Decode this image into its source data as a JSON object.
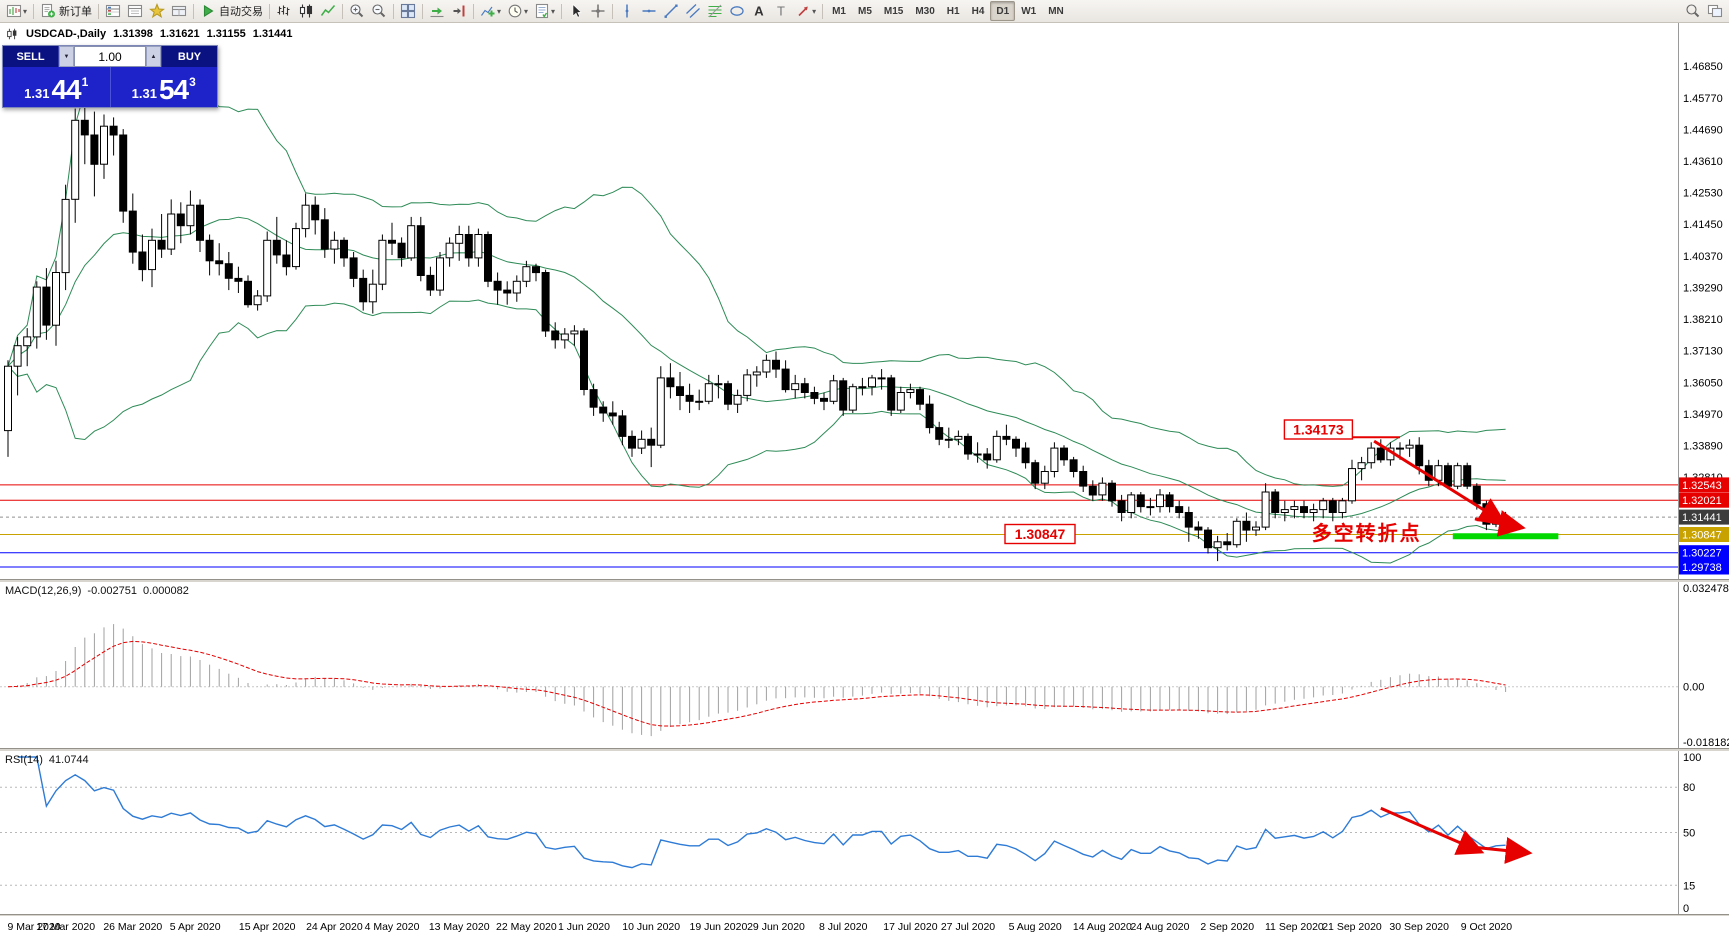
{
  "toolbar": {
    "groups": [
      [
        {
          "icon": "chart-window",
          "dropdown": true
        }
      ],
      [
        {
          "icon": "new-order",
          "label": "新订单"
        }
      ],
      [
        {
          "icon": "market-watch"
        },
        {
          "icon": "data-window"
        },
        {
          "icon": "navigator"
        },
        {
          "icon": "terminal-box"
        }
      ],
      [
        {
          "icon": "auto-trading",
          "label": "自动交易"
        }
      ],
      [
        {
          "icon": "bar-chart"
        },
        {
          "icon": "candle-chart"
        },
        {
          "icon": "line-chart"
        }
      ],
      [
        {
          "icon": "zoom-in"
        },
        {
          "icon": "zoom-out"
        }
      ],
      [
        {
          "icon": "tile-windows"
        }
      ],
      [
        {
          "icon": "auto-scroll"
        },
        {
          "icon": "chart-shift"
        }
      ],
      [
        {
          "icon": "indicators",
          "dropdown": true
        },
        {
          "icon": "periods",
          "dropdown": true
        },
        {
          "icon": "templates",
          "dropdown": true
        }
      ],
      [
        {
          "icon": "cursor"
        },
        {
          "icon": "crosshair"
        }
      ],
      [
        {
          "icon": "vertical-line"
        },
        {
          "icon": "horizontal-line"
        },
        {
          "icon": "trendline"
        },
        {
          "icon": "equidistant-channel"
        },
        {
          "icon": "fibonacci"
        },
        {
          "icon": "shapes"
        },
        {
          "icon": "text"
        },
        {
          "icon": "label"
        },
        {
          "icon": "arrows",
          "dropdown": true
        }
      ],
      [
        {
          "text": "M1"
        },
        {
          "text": "M5"
        },
        {
          "text": "M15"
        },
        {
          "text": "M30"
        },
        {
          "text": "H1"
        },
        {
          "text": "H4"
        },
        {
          "text": "D1",
          "active": true
        },
        {
          "text": "W1"
        },
        {
          "text": "MN"
        }
      ]
    ],
    "right_icons": [
      {
        "icon": "search"
      },
      {
        "icon": "layouts"
      }
    ]
  },
  "chart_header": {
    "symbol": "USDCAD-,Daily",
    "open": "1.31398",
    "high": "1.31621",
    "low": "1.31155",
    "close": "1.31441"
  },
  "trade_panel": {
    "sell_label": "SELL",
    "buy_label": "BUY",
    "volume": "1.00",
    "sell_price": {
      "prefix": "1.31",
      "big": "44",
      "sup": "1"
    },
    "buy_price": {
      "prefix": "1.31",
      "big": "54",
      "sup": "3"
    }
  },
  "main_chart": {
    "ylim": [
      1.2943,
      1.4836
    ],
    "axis_labels": [
      1.4685,
      1.4577,
      1.4469,
      1.4361,
      1.4253,
      1.4145,
      1.4037,
      1.3929,
      1.3821,
      1.3713,
      1.3605,
      1.3497,
      1.3389,
      1.3281
    ],
    "hlines": [
      {
        "price": 1.32543,
        "color": "#e60000"
      },
      {
        "price": 1.32021,
        "color": "#e60000"
      },
      {
        "price": 1.30847,
        "color": "#c8a200"
      },
      {
        "price": 1.30227,
        "color": "#0000ff"
      },
      {
        "price": 1.29738,
        "color": "#0000ff"
      }
    ],
    "current_price": {
      "value": 1.31441,
      "tag_color": "#3c3c3c"
    },
    "bollinger": {
      "period": 20,
      "deviation": 2,
      "color": "#2e8b57"
    },
    "annotations": {
      "arrow_color": "#e60000",
      "peak_label": {
        "text": "1.34173",
        "index": 136.5,
        "price": 1.3442
      },
      "peak_line": {
        "price": 1.34173,
        "i1": 140,
        "i2": 145
      },
      "support_label": {
        "text": "1.30847",
        "index": 107.5,
        "price": 1.30847
      },
      "turning_point_text": {
        "text": "多空转折点",
        "index": 135.8,
        "price": 1.3066
      },
      "support_segment": {
        "price": 1.3079,
        "i1": 150.5,
        "i2": 161.5,
        "color": "#00d800"
      },
      "arrows": [
        {
          "i1": 142.3,
          "p1": 1.3404,
          "i2": 155.8,
          "p2": 1.3126
        },
        {
          "i1": 152.8,
          "p1": 1.3138,
          "i2": 157.8,
          "p2": 1.3108
        }
      ]
    },
    "candles": [
      [
        1.344,
        1.368,
        1.335,
        1.366
      ],
      [
        1.366,
        1.376,
        1.356,
        1.373
      ],
      [
        1.373,
        1.379,
        1.366,
        1.376
      ],
      [
        1.376,
        1.395,
        1.372,
        1.393
      ],
      [
        1.393,
        1.3995,
        1.375,
        1.38
      ],
      [
        1.38,
        1.402,
        1.373,
        1.398
      ],
      [
        1.398,
        1.428,
        1.392,
        1.423
      ],
      [
        1.423,
        1.454,
        1.415,
        1.45
      ],
      [
        1.45,
        1.4669,
        1.435,
        1.445
      ],
      [
        1.445,
        1.453,
        1.424,
        1.435
      ],
      [
        1.435,
        1.452,
        1.43,
        1.448
      ],
      [
        1.448,
        1.451,
        1.438,
        1.445
      ],
      [
        1.445,
        1.447,
        1.415,
        1.419
      ],
      [
        1.419,
        1.425,
        1.401,
        1.405
      ],
      [
        1.405,
        1.411,
        1.395,
        1.399
      ],
      [
        1.399,
        1.413,
        1.393,
        1.409
      ],
      [
        1.409,
        1.418,
        1.403,
        1.406
      ],
      [
        1.406,
        1.423,
        1.404,
        1.418
      ],
      [
        1.418,
        1.422,
        1.408,
        1.414
      ],
      [
        1.414,
        1.426,
        1.411,
        1.421
      ],
      [
        1.421,
        1.423,
        1.405,
        1.409
      ],
      [
        1.409,
        1.411,
        1.397,
        1.402
      ],
      [
        1.402,
        1.408,
        1.397,
        1.401
      ],
      [
        1.401,
        1.405,
        1.392,
        1.396
      ],
      [
        1.396,
        1.4,
        1.391,
        1.395
      ],
      [
        1.395,
        1.397,
        1.386,
        1.387
      ],
      [
        1.387,
        1.392,
        1.385,
        1.39
      ],
      [
        1.39,
        1.412,
        1.388,
        1.409
      ],
      [
        1.409,
        1.417,
        1.401,
        1.404
      ],
      [
        1.404,
        1.409,
        1.397,
        1.4
      ],
      [
        1.4,
        1.415,
        1.399,
        1.413
      ],
      [
        1.413,
        1.425,
        1.41,
        1.421
      ],
      [
        1.421,
        1.424,
        1.411,
        1.416
      ],
      [
        1.416,
        1.42,
        1.403,
        1.406
      ],
      [
        1.406,
        1.412,
        1.401,
        1.409
      ],
      [
        1.409,
        1.41,
        1.4,
        1.403
      ],
      [
        1.403,
        1.405,
        1.393,
        1.396
      ],
      [
        1.396,
        1.399,
        1.385,
        1.388
      ],
      [
        1.388,
        1.399,
        1.384,
        1.394
      ],
      [
        1.394,
        1.411,
        1.392,
        1.409
      ],
      [
        1.409,
        1.415,
        1.404,
        1.408
      ],
      [
        1.408,
        1.41,
        1.4,
        1.403
      ],
      [
        1.403,
        1.417,
        1.402,
        1.414
      ],
      [
        1.414,
        1.417,
        1.395,
        1.397
      ],
      [
        1.397,
        1.4,
        1.39,
        1.392
      ],
      [
        1.392,
        1.405,
        1.39,
        1.403
      ],
      [
        1.403,
        1.41,
        1.4,
        1.408
      ],
      [
        1.408,
        1.414,
        1.402,
        1.411
      ],
      [
        1.411,
        1.414,
        1.4,
        1.403
      ],
      [
        1.403,
        1.413,
        1.4,
        1.411
      ],
      [
        1.411,
        1.412,
        1.393,
        1.395
      ],
      [
        1.395,
        1.398,
        1.387,
        1.392
      ],
      [
        1.392,
        1.395,
        1.387,
        1.391
      ],
      [
        1.391,
        1.397,
        1.388,
        1.395
      ],
      [
        1.395,
        1.402,
        1.393,
        1.4
      ],
      [
        1.4,
        1.401,
        1.395,
        1.398
      ],
      [
        1.398,
        1.399,
        1.376,
        1.378
      ],
      [
        1.378,
        1.381,
        1.372,
        1.375
      ],
      [
        1.375,
        1.379,
        1.372,
        1.377
      ],
      [
        1.377,
        1.38,
        1.373,
        1.378
      ],
      [
        1.378,
        1.379,
        1.356,
        1.358
      ],
      [
        1.358,
        1.36,
        1.349,
        1.352
      ],
      [
        1.352,
        1.354,
        1.347,
        1.35
      ],
      [
        1.35,
        1.354,
        1.346,
        1.349
      ],
      [
        1.349,
        1.351,
        1.339,
        1.342
      ],
      [
        1.342,
        1.344,
        1.335,
        1.338
      ],
      [
        1.338,
        1.344,
        1.336,
        1.341
      ],
      [
        1.341,
        1.345,
        1.3315,
        1.339
      ],
      [
        1.339,
        1.366,
        1.338,
        1.362
      ],
      [
        1.362,
        1.367,
        1.355,
        1.359
      ],
      [
        1.359,
        1.364,
        1.351,
        1.356
      ],
      [
        1.356,
        1.36,
        1.35,
        1.354
      ],
      [
        1.354,
        1.358,
        1.351,
        1.354
      ],
      [
        1.354,
        1.363,
        1.353,
        1.36
      ],
      [
        1.36,
        1.363,
        1.355,
        1.36
      ],
      [
        1.36,
        1.361,
        1.351,
        1.353
      ],
      [
        1.353,
        1.358,
        1.35,
        1.356
      ],
      [
        1.356,
        1.365,
        1.354,
        1.363
      ],
      [
        1.363,
        1.366,
        1.359,
        1.364
      ],
      [
        1.364,
        1.37,
        1.362,
        1.368
      ],
      [
        1.368,
        1.371,
        1.362,
        1.365
      ],
      [
        1.365,
        1.368,
        1.357,
        1.358
      ],
      [
        1.358,
        1.363,
        1.355,
        1.36
      ],
      [
        1.36,
        1.362,
        1.355,
        1.357
      ],
      [
        1.357,
        1.359,
        1.353,
        1.355
      ],
      [
        1.355,
        1.357,
        1.351,
        1.354
      ],
      [
        1.354,
        1.363,
        1.353,
        1.361
      ],
      [
        1.361,
        1.362,
        1.349,
        1.351
      ],
      [
        1.351,
        1.36,
        1.35,
        1.359
      ],
      [
        1.359,
        1.362,
        1.356,
        1.359
      ],
      [
        1.359,
        1.363,
        1.356,
        1.362
      ],
      [
        1.362,
        1.365,
        1.358,
        1.362
      ],
      [
        1.362,
        1.363,
        1.349,
        1.351
      ],
      [
        1.351,
        1.359,
        1.35,
        1.357
      ],
      [
        1.357,
        1.36,
        1.355,
        1.358
      ],
      [
        1.358,
        1.359,
        1.351,
        1.353
      ],
      [
        1.353,
        1.356,
        1.343,
        1.345
      ],
      [
        1.345,
        1.347,
        1.339,
        1.341
      ],
      [
        1.341,
        1.345,
        1.338,
        1.341
      ],
      [
        1.341,
        1.344,
        1.339,
        1.342
      ],
      [
        1.342,
        1.343,
        1.334,
        1.336
      ],
      [
        1.336,
        1.34,
        1.333,
        1.336
      ],
      [
        1.336,
        1.338,
        1.331,
        1.334
      ],
      [
        1.334,
        1.344,
        1.333,
        1.342
      ],
      [
        1.342,
        1.346,
        1.339,
        1.341
      ],
      [
        1.341,
        1.342,
        1.335,
        1.338
      ],
      [
        1.338,
        1.34,
        1.331,
        1.333
      ],
      [
        1.333,
        1.334,
        1.324,
        1.326
      ],
      [
        1.326,
        1.332,
        1.324,
        1.33
      ],
      [
        1.33,
        1.34,
        1.328,
        1.338
      ],
      [
        1.338,
        1.339,
        1.332,
        1.334
      ],
      [
        1.334,
        1.335,
        1.328,
        1.33
      ],
      [
        1.33,
        1.332,
        1.323,
        1.325
      ],
      [
        1.325,
        1.327,
        1.32,
        1.322
      ],
      [
        1.322,
        1.328,
        1.32,
        1.326
      ],
      [
        1.326,
        1.327,
        1.318,
        1.32
      ],
      [
        1.32,
        1.322,
        1.313,
        1.316
      ],
      [
        1.316,
        1.323,
        1.314,
        1.322
      ],
      [
        1.322,
        1.323,
        1.316,
        1.318
      ],
      [
        1.318,
        1.321,
        1.315,
        1.318
      ],
      [
        1.318,
        1.324,
        1.316,
        1.322
      ],
      [
        1.322,
        1.323,
        1.316,
        1.318
      ],
      [
        1.318,
        1.32,
        1.314,
        1.316
      ],
      [
        1.316,
        1.318,
        1.306,
        1.311
      ],
      [
        1.311,
        1.313,
        1.307,
        1.31
      ],
      [
        1.31,
        1.311,
        1.302,
        1.304
      ],
      [
        1.304,
        1.308,
        1.2994,
        1.306
      ],
      [
        1.306,
        1.309,
        1.303,
        1.305
      ],
      [
        1.305,
        1.314,
        1.304,
        1.313
      ],
      [
        1.313,
        1.316,
        1.306,
        1.31
      ],
      [
        1.31,
        1.313,
        1.308,
        1.311
      ],
      [
        1.311,
        1.326,
        1.31,
        1.323
      ],
      [
        1.323,
        1.324,
        1.314,
        1.316
      ],
      [
        1.316,
        1.32,
        1.313,
        1.317
      ],
      [
        1.317,
        1.32,
        1.314,
        1.318
      ],
      [
        1.318,
        1.32,
        1.314,
        1.316
      ],
      [
        1.316,
        1.319,
        1.313,
        1.317
      ],
      [
        1.317,
        1.321,
        1.314,
        1.32
      ],
      [
        1.32,
        1.321,
        1.313,
        1.316
      ],
      [
        1.316,
        1.321,
        1.314,
        1.32
      ],
      [
        1.32,
        1.334,
        1.319,
        1.331
      ],
      [
        1.331,
        1.335,
        1.327,
        1.333
      ],
      [
        1.333,
        1.34,
        1.331,
        1.338
      ],
      [
        1.338,
        1.341,
        1.333,
        1.334
      ],
      [
        1.334,
        1.34,
        1.332,
        1.338
      ],
      [
        1.338,
        1.34,
        1.334,
        1.338
      ],
      [
        1.338,
        1.341,
        1.335,
        1.339
      ],
      [
        1.339,
        1.34173,
        1.329,
        1.332
      ],
      [
        1.332,
        1.334,
        1.325,
        1.327
      ],
      [
        1.327,
        1.334,
        1.325,
        1.332
      ],
      [
        1.332,
        1.333,
        1.324,
        1.325
      ],
      [
        1.325,
        1.333,
        1.324,
        1.332
      ],
      [
        1.332,
        1.333,
        1.324,
        1.325
      ],
      [
        1.325,
        1.326,
        1.317,
        1.319
      ],
      [
        1.319,
        1.32,
        1.31,
        1.312
      ],
      [
        1.312,
        1.316,
        1.311,
        1.314
      ],
      [
        1.31398,
        1.31621,
        1.31155,
        1.31441
      ]
    ]
  },
  "macd_panel": {
    "label": "MACD(12,26,9)",
    "value_main": "-0.002751",
    "value_signal": "0.000082",
    "ylim": [
      -0.018182,
      0.032478
    ],
    "axis_labels": [
      {
        "text": "0.032478",
        "value": 0.032478
      },
      {
        "text": "0.00",
        "value": 0
      },
      {
        "text": "-0.018182",
        "value": -0.018182
      }
    ]
  },
  "rsi_panel": {
    "label": "RSI(14)",
    "value": "41.0744",
    "color": "#2e7bd6",
    "levels": [
      80,
      50,
      15
    ],
    "axis_labels": [
      {
        "text": "100",
        "value": 100
      },
      {
        "text": "80",
        "value": 80
      },
      {
        "text": "50",
        "value": 50
      },
      {
        "text": "15",
        "value": 15
      },
      {
        "text": "0",
        "value": 0
      }
    ],
    "arrows": [
      {
        "i1": 143,
        "v1": 66,
        "i2": 153.5,
        "v2": 37
      },
      {
        "i1": 151.5,
        "v1": 41,
        "i2": 158.5,
        "v2": 36.5
      }
    ]
  },
  "date_axis": [
    {
      "label": "9 Mar 2020",
      "index": 0
    },
    {
      "label": "17 Mar 2020",
      "index": 6
    },
    {
      "label": "26 Mar 2020",
      "index": 13
    },
    {
      "label": "5 Apr 2020",
      "index": 19.5
    },
    {
      "label": "15 Apr 2020",
      "index": 27
    },
    {
      "label": "24 Apr 2020",
      "index": 34
    },
    {
      "label": "4 May 2020",
      "index": 40
    },
    {
      "label": "13 May 2020",
      "index": 47
    },
    {
      "label": "22 May 2020",
      "index": 54
    },
    {
      "label": "1 Jun 2020",
      "index": 60
    },
    {
      "label": "10 Jun 2020",
      "index": 67
    },
    {
      "label": "19 Jun 2020",
      "index": 74
    },
    {
      "label": "29 Jun 2020",
      "index": 80
    },
    {
      "label": "8 Jul 2020",
      "index": 87
    },
    {
      "label": "17 Jul 2020",
      "index": 94
    },
    {
      "label": "27 Jul 2020",
      "index": 100
    },
    {
      "label": "5 Aug 2020",
      "index": 107
    },
    {
      "label": "14 Aug 2020",
      "index": 114
    },
    {
      "label": "24 Aug 2020",
      "index": 120
    },
    {
      "label": "2 Sep 2020",
      "index": 127
    },
    {
      "label": "11 Sep 2020",
      "index": 134
    },
    {
      "label": "21 Sep 2020",
      "index": 140
    },
    {
      "label": "30 Sep 2020",
      "index": 147
    },
    {
      "label": "9 Oct 2020",
      "index": 154
    }
  ]
}
